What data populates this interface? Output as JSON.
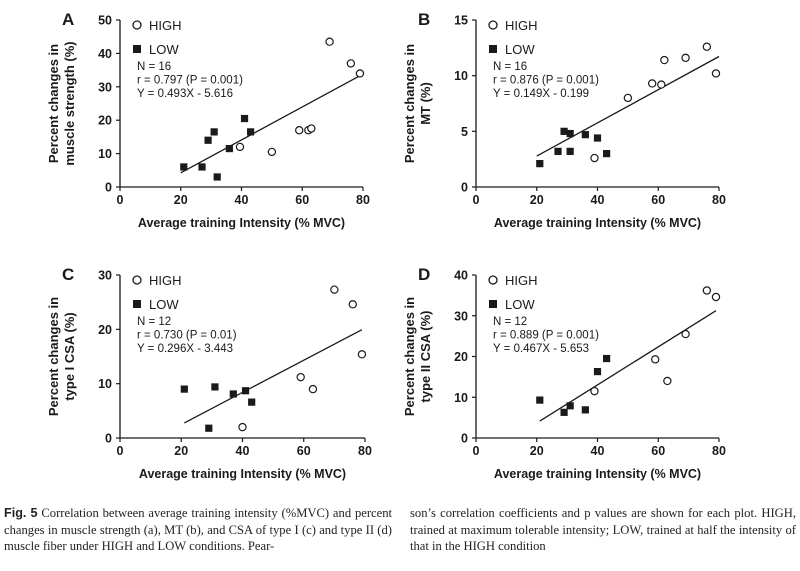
{
  "chart_data": [
    {
      "type": "scatter",
      "panel_label": "A",
      "ylabel_lines": [
        "Percent changes in",
        "muscle strength (%)"
      ],
      "xlabel": "Average training Intensity (% MVC)",
      "xlim": [
        0,
        80
      ],
      "ylim": [
        0,
        50
      ],
      "xticks": [
        "0",
        "20",
        "40",
        "60",
        "80"
      ],
      "yticks": [
        "0",
        "10",
        "20",
        "30",
        "40",
        "50"
      ],
      "legend": [
        {
          "name": "HIGH",
          "marker": "open-circle"
        },
        {
          "name": "LOW",
          "marker": "filled-square"
        }
      ],
      "stats": [
        "N  = 16",
        "r  = 0.797  (P = 0.001)",
        "Y = 0.493X - 5.616"
      ],
      "fit": {
        "slope": 0.493,
        "intercept": -5.616,
        "x_range": [
          20,
          80
        ]
      },
      "series": [
        {
          "name": "HIGH",
          "points": [
            [
              39.5,
              12
            ],
            [
              50,
              10.5
            ],
            [
              59,
              17
            ],
            [
              62,
              17
            ],
            [
              63,
              17.5
            ],
            [
              69,
              43.5
            ],
            [
              76,
              37
            ],
            [
              79,
              34
            ]
          ]
        },
        {
          "name": "LOW",
          "points": [
            [
              21,
              6
            ],
            [
              27,
              6
            ],
            [
              29,
              14
            ],
            [
              31,
              16.5
            ],
            [
              32,
              3
            ],
            [
              36,
              11.5
            ],
            [
              41,
              20.5
            ],
            [
              43,
              16.5
            ]
          ]
        }
      ]
    },
    {
      "type": "scatter",
      "panel_label": "B",
      "ylabel_lines": [
        "Percent changes in",
        "MT (%)"
      ],
      "xlabel": "Average training Intensity (% MVC)",
      "xlim": [
        0,
        80
      ],
      "ylim": [
        0,
        15
      ],
      "xticks": [
        "0",
        "20",
        "40",
        "60",
        "80"
      ],
      "yticks": [
        "0",
        "5",
        "10",
        "15"
      ],
      "legend": [
        {
          "name": "HIGH",
          "marker": "open-circle"
        },
        {
          "name": "LOW",
          "marker": "filled-square"
        }
      ],
      "stats": [
        "N  = 16",
        "r  = 0.876  (P = 0.001)",
        "Y = 0.149X - 0.199"
      ],
      "fit": {
        "slope": 0.149,
        "intercept": -0.199,
        "x_range": [
          20,
          80
        ]
      },
      "series": [
        {
          "name": "HIGH",
          "points": [
            [
              39,
              2.6
            ],
            [
              50,
              8
            ],
            [
              58,
              9.3
            ],
            [
              61,
              9.2
            ],
            [
              62,
              11.4
            ],
            [
              69,
              11.6
            ],
            [
              76,
              12.6
            ],
            [
              79,
              10.2
            ]
          ]
        },
        {
          "name": "LOW",
          "points": [
            [
              21,
              2.1
            ],
            [
              27,
              3.2
            ],
            [
              29,
              5
            ],
            [
              31,
              3.2
            ],
            [
              31,
              4.8
            ],
            [
              36,
              4.7
            ],
            [
              40,
              4.4
            ],
            [
              43,
              3.0
            ]
          ]
        }
      ]
    },
    {
      "type": "scatter",
      "panel_label": "C",
      "ylabel_lines": [
        "Percent changes in",
        "type I CSA (%)"
      ],
      "xlabel": "Average training Intensity (% MVC)",
      "xlim": [
        0,
        80
      ],
      "ylim": [
        0,
        30
      ],
      "xticks": [
        "0",
        "20",
        "40",
        "60",
        "80"
      ],
      "yticks": [
        "0",
        "10",
        "20",
        "30"
      ],
      "legend": [
        {
          "name": "HIGH",
          "marker": "open-circle"
        },
        {
          "name": "LOW",
          "marker": "filled-square"
        }
      ],
      "stats": [
        "N  = 12",
        "r  = 0.730  (P = 0.01)",
        "Y = 0.296X - 3.443"
      ],
      "fit": {
        "slope": 0.296,
        "intercept": -3.443,
        "x_range": [
          21,
          79
        ]
      },
      "series": [
        {
          "name": "HIGH",
          "points": [
            [
              40,
              2
            ],
            [
              59,
              11.2
            ],
            [
              63,
              9
            ],
            [
              70,
              27.3
            ],
            [
              76,
              24.6
            ],
            [
              79,
              15.4
            ]
          ]
        },
        {
          "name": "LOW",
          "points": [
            [
              21,
              9
            ],
            [
              29,
              1.8
            ],
            [
              31,
              9.4
            ],
            [
              37,
              8.1
            ],
            [
              41,
              8.7
            ],
            [
              43,
              6.6
            ]
          ]
        }
      ]
    },
    {
      "type": "scatter",
      "panel_label": "D",
      "ylabel_lines": [
        "Percent changes in",
        "type II CSA (%)"
      ],
      "xlabel": "Average training Intensity (% MVC)",
      "xlim": [
        0,
        80
      ],
      "ylim": [
        0,
        40
      ],
      "xticks": [
        "0",
        "20",
        "40",
        "60",
        "80"
      ],
      "yticks": [
        "0",
        "10",
        "20",
        "30",
        "40"
      ],
      "legend": [
        {
          "name": "HIGH",
          "marker": "open-circle"
        },
        {
          "name": "LOW",
          "marker": "filled-square"
        }
      ],
      "stats": [
        "N  = 12",
        "r  = 0.889  (P = 0.001)",
        "Y = 0.467X - 5.653"
      ],
      "fit": {
        "slope": 0.467,
        "intercept": -5.653,
        "x_range": [
          21,
          79
        ]
      },
      "series": [
        {
          "name": "HIGH",
          "points": [
            [
              39,
              11.5
            ],
            [
              59,
              19.3
            ],
            [
              63,
              14
            ],
            [
              69,
              25.5
            ],
            [
              76,
              36.2
            ],
            [
              79,
              34.6
            ]
          ]
        },
        {
          "name": "LOW",
          "points": [
            [
              21,
              9.3
            ],
            [
              29,
              6.3
            ],
            [
              31,
              7.9
            ],
            [
              36,
              6.9
            ],
            [
              40,
              16.3
            ],
            [
              43,
              19.5
            ]
          ]
        }
      ]
    }
  ],
  "caption": {
    "fig_label": "Fig. 5",
    "left_text": "Correlation between average training intensity (%MVC) and percent changes in muscle strength (a), MT (b), and CSA of type I (c) and type II (d) muscle fiber under HIGH and LOW conditions. Pear-",
    "right_text": "son’s correlation coefficients and p values are shown for each plot. HIGH, trained at maximum tolerable intensity; LOW, trained at half the intensity of that in the HIGH condition"
  }
}
